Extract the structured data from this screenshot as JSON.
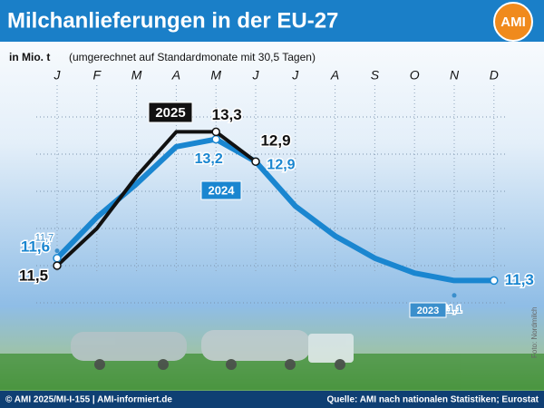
{
  "chart_data": {
    "type": "line",
    "title": "Milchanlieferungen in der EU-27",
    "logo": "AMI",
    "unit": "in Mio. t",
    "subtitle": "(umgerechnet auf Standardmonate mit 30,5 Tagen)",
    "categories": [
      "J",
      "F",
      "M",
      "A",
      "M",
      "J",
      "J",
      "A",
      "S",
      "O",
      "N",
      "D"
    ],
    "ylim": [
      10.75,
      14.0
    ],
    "yticks": [
      11.0,
      11.5,
      12.0,
      12.5,
      13.0,
      13.5
    ],
    "grid": true,
    "series": [
      {
        "name": "2024",
        "color": "#1a86d0",
        "values": [
          11.6,
          12.15,
          12.6,
          13.1,
          13.2,
          12.9,
          12.3,
          11.9,
          11.6,
          11.4,
          11.3,
          11.3
        ],
        "value_labels": [
          "11,6",
          null,
          null,
          null,
          "13,2",
          "12,9",
          null,
          null,
          null,
          null,
          null,
          "11,3"
        ]
      },
      {
        "name": "2025",
        "color": "#111111",
        "values": [
          11.5,
          12.0,
          12.7,
          13.3,
          13.3,
          12.9,
          null,
          null,
          null,
          null,
          null,
          null
        ],
        "value_labels": [
          "11,5",
          null,
          null,
          null,
          "13,3",
          "12,9",
          null,
          null,
          null,
          null,
          null,
          null
        ]
      },
      {
        "name": "2023",
        "color": "#3b8fcc",
        "values": [
          11.7,
          null,
          null,
          null,
          null,
          null,
          null,
          null,
          null,
          null,
          11.1,
          null
        ],
        "value_labels": [
          "11,7",
          null,
          null,
          null,
          null,
          null,
          null,
          null,
          null,
          null,
          "11,1",
          null
        ]
      }
    ],
    "footer_left": "© AMI 2025/MI-I-155 | AMI-informiert.de",
    "footer_right": "Quelle: AMI nach nationalen Statistiken; Eurostat",
    "photo_credit": "Foto: Nordmilch"
  }
}
